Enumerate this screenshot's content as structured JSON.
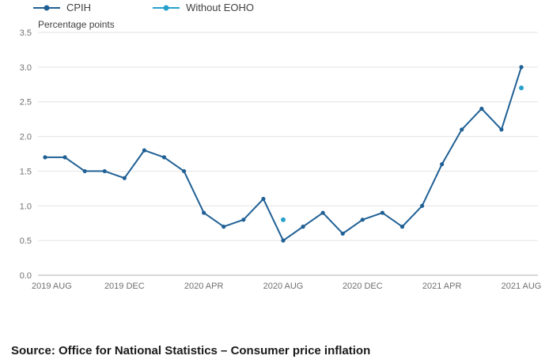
{
  "chart_data": {
    "type": "line",
    "title": "",
    "ylabel": "Percentage points",
    "xlabel": "",
    "ylim": [
      0,
      3.5
    ],
    "y_tick_step": 0.5,
    "grid": true,
    "legend_position": "top-left",
    "categories": [
      "2019 AUG",
      "2019 SEP",
      "2019 OCT",
      "2019 NOV",
      "2019 DEC",
      "2020 JAN",
      "2020 FEB",
      "2020 MAR",
      "2020 APR",
      "2020 MAY",
      "2020 JUN",
      "2020 JUL",
      "2020 AUG",
      "2020 SEP",
      "2020 OCT",
      "2020 NOV",
      "2020 DEC",
      "2021 JAN",
      "2021 FEB",
      "2021 MAR",
      "2021 APR",
      "2021 MAY",
      "2021 JUN",
      "2021 JUL",
      "2021 AUG"
    ],
    "x_tick_labels": [
      "2019 AUG",
      "2019 DEC",
      "2020 APR",
      "2020 AUG",
      "2020 DEC",
      "2021 APR",
      "2021 AUG"
    ],
    "x_tick_indices": [
      0,
      4,
      8,
      12,
      16,
      20,
      24
    ],
    "series": [
      {
        "name": "CPIH",
        "type": "line",
        "color": "#206095",
        "values": [
          1.7,
          1.7,
          1.5,
          1.5,
          1.4,
          1.8,
          1.7,
          1.5,
          0.9,
          0.7,
          0.8,
          1.1,
          0.5,
          0.7,
          0.9,
          0.6,
          0.8,
          0.9,
          0.7,
          1.0,
          1.6,
          2.1,
          2.4,
          2.1,
          3.0
        ]
      },
      {
        "name": "Without EOHO",
        "type": "scatter",
        "color": "#27A0CC",
        "points": [
          {
            "category": "2020 AUG",
            "value": 0.8
          },
          {
            "category": "2021 AUG",
            "value": 2.7
          }
        ]
      }
    ],
    "colors": {
      "gridline": "#e2e2e2",
      "axis_line": "#b0b0b0",
      "tick_label": "#707071",
      "axis_title": "#414042"
    }
  },
  "source": "Source: Office for National Statistics – Consumer price inflation"
}
